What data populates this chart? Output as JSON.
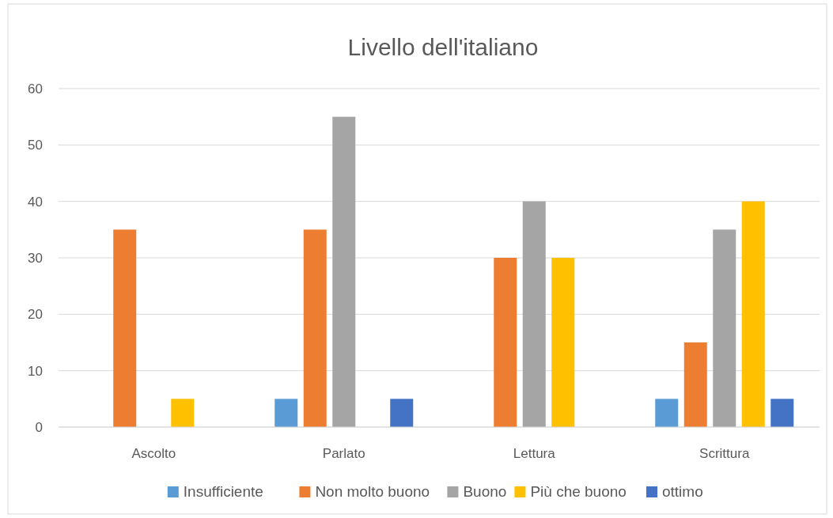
{
  "chart_data": {
    "type": "bar",
    "title": "Livello dell'italiano",
    "categories": [
      "Ascolto",
      "Parlato",
      "Lettura",
      "Scrittura"
    ],
    "series": [
      {
        "name": "Insufficiente",
        "color": "#5b9bd5",
        "values": [
          0,
          5,
          0,
          5
        ]
      },
      {
        "name": "Non molto buono",
        "color": "#ed7d31",
        "values": [
          35,
          35,
          30,
          15
        ]
      },
      {
        "name": "Buono",
        "color": "#a5a5a5",
        "values": [
          0,
          55,
          40,
          35
        ]
      },
      {
        "name": "Più che buono",
        "color": "#ffc000",
        "values": [
          5,
          0,
          30,
          40
        ]
      },
      {
        "name": "ottimo",
        "color": "#4472c4",
        "values": [
          0,
          5,
          0,
          5
        ]
      }
    ],
    "ylim": [
      0,
      60
    ],
    "yticks": [
      0,
      10,
      20,
      30,
      40,
      50,
      60
    ],
    "grid": "y",
    "legend": "bottom"
  }
}
